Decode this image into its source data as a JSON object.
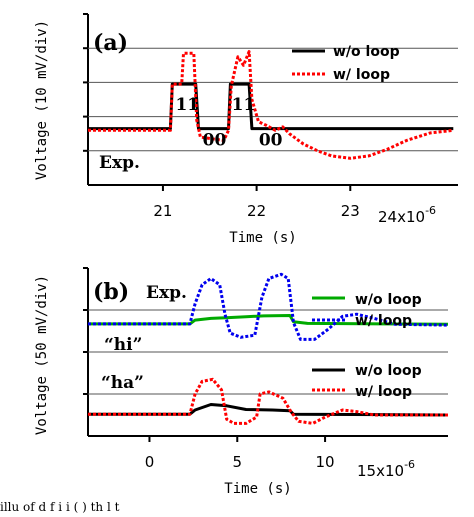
{
  "caption": "illu           of          d f   i   i    (   ) th  l t",
  "chart_data": [
    {
      "type": "line",
      "panel_label": "(a)",
      "corner_text": "Exp.",
      "xlabel": "Time (s)",
      "ylabel": "Voltage (10 mV/div)",
      "x_multiplier": "24x10",
      "x_multiplier_exp": "-6",
      "xlim": [
        20.2,
        24.15
      ],
      "ylim": [
        0,
        5
      ],
      "xticks": [
        21,
        22,
        23
      ],
      "xtick_labels": [
        "21",
        "22",
        "23"
      ],
      "y_gridlines": [
        1,
        2,
        3,
        4
      ],
      "legend_position": "top-right",
      "series": [
        {
          "name": "w/o loop",
          "color": "#000000",
          "style": "solid",
          "points": [
            [
              20.2,
              1.65
            ],
            [
              21.08,
              1.65
            ],
            [
              21.1,
              2.95
            ],
            [
              21.35,
              2.95
            ],
            [
              21.38,
              1.65
            ],
            [
              21.7,
              1.65
            ],
            [
              21.72,
              2.95
            ],
            [
              21.92,
              2.95
            ],
            [
              21.95,
              1.65
            ],
            [
              24.1,
              1.65
            ]
          ]
        },
        {
          "name": "w/ loop",
          "color": "#ff0000",
          "style": "dotted",
          "points": [
            [
              20.2,
              1.6
            ],
            [
              21.08,
              1.6
            ],
            [
              21.1,
              2.95
            ],
            [
              21.2,
              2.95
            ],
            [
              21.22,
              3.85
            ],
            [
              21.33,
              3.85
            ],
            [
              21.36,
              1.9
            ],
            [
              21.4,
              1.4
            ],
            [
              21.65,
              1.3
            ],
            [
              21.7,
              1.6
            ],
            [
              21.73,
              2.9
            ],
            [
              21.8,
              3.75
            ],
            [
              21.86,
              3.5
            ],
            [
              21.92,
              3.9
            ],
            [
              21.95,
              2.5
            ],
            [
              22.02,
              1.85
            ],
            [
              22.1,
              1.75
            ],
            [
              22.2,
              1.6
            ],
            [
              22.28,
              1.7
            ],
            [
              22.35,
              1.5
            ],
            [
              22.5,
              1.2
            ],
            [
              22.65,
              1.0
            ],
            [
              22.8,
              0.85
            ],
            [
              23.0,
              0.78
            ],
            [
              23.2,
              0.85
            ],
            [
              23.4,
              1.05
            ],
            [
              23.6,
              1.3
            ],
            [
              23.85,
              1.52
            ],
            [
              24.1,
              1.6
            ]
          ]
        }
      ],
      "annotations": [
        {
          "text": "11",
          "x": 21.26,
          "y": 2.2
        },
        {
          "text": "00",
          "x": 21.55,
          "y": 1.15
        },
        {
          "text": "11",
          "x": 21.86,
          "y": 2.2
        },
        {
          "text": "00",
          "x": 22.15,
          "y": 1.15
        }
      ]
    },
    {
      "type": "line",
      "panel_label": "(b)",
      "corner_text": "Exp.",
      "xlabel": "Time (s)",
      "ylabel": "Voltage (50 mV/div)",
      "x_multiplier": "15x10",
      "x_multiplier_exp": "-6",
      "xlim": [
        -3.5,
        17
      ],
      "ylim": [
        0,
        4
      ],
      "xticks": [
        0,
        5,
        10
      ],
      "xtick_labels": [
        "0",
        "5",
        "10"
      ],
      "y_gridlines": [
        1,
        2,
        3
      ],
      "legend_position": "top-right",
      "groups": [
        {
          "label": "“hi”",
          "series": [
            {
              "name": "w/o loop",
              "color": "#00aa00",
              "style": "solid",
              "points": [
                [
                  -3.5,
                  2.67
                ],
                [
                  2.3,
                  2.67
                ],
                [
                  2.6,
                  2.76
                ],
                [
                  3.5,
                  2.8
                ],
                [
                  4.5,
                  2.82
                ],
                [
                  5.5,
                  2.84
                ],
                [
                  6.5,
                  2.86
                ],
                [
                  8,
                  2.87
                ],
                [
                  8.2,
                  2.72
                ],
                [
                  9,
                  2.68
                ],
                [
                  17,
                  2.66
                ]
              ]
            },
            {
              "name": "w/ loop",
              "color": "#0000ee",
              "style": "dotted",
              "points": [
                [
                  -3.5,
                  2.67
                ],
                [
                  2.3,
                  2.67
                ],
                [
                  2.6,
                  3.15
                ],
                [
                  3,
                  3.6
                ],
                [
                  3.5,
                  3.75
                ],
                [
                  4.0,
                  3.6
                ],
                [
                  4.3,
                  2.9
                ],
                [
                  4.6,
                  2.45
                ],
                [
                  5.2,
                  2.35
                ],
                [
                  6.0,
                  2.4
                ],
                [
                  6.4,
                  3.3
                ],
                [
                  6.8,
                  3.75
                ],
                [
                  7.5,
                  3.85
                ],
                [
                  7.9,
                  3.75
                ],
                [
                  8.2,
                  2.7
                ],
                [
                  8.6,
                  2.3
                ],
                [
                  9.4,
                  2.3
                ],
                [
                  10.2,
                  2.55
                ],
                [
                  11.0,
                  2.85
                ],
                [
                  11.8,
                  2.9
                ],
                [
                  12.8,
                  2.8
                ],
                [
                  14,
                  2.66
                ],
                [
                  17,
                  2.64
                ]
              ]
            }
          ]
        },
        {
          "label": "“ha”",
          "series": [
            {
              "name": "w/o loop",
              "color": "#000000",
              "style": "solid",
              "points": [
                [
                  -3.5,
                  0.52
                ],
                [
                  2.3,
                  0.52
                ],
                [
                  2.6,
                  0.62
                ],
                [
                  3.5,
                  0.75
                ],
                [
                  4.4,
                  0.72
                ],
                [
                  5.5,
                  0.63
                ],
                [
                  7,
                  0.62
                ],
                [
                  8,
                  0.6
                ],
                [
                  8.2,
                  0.52
                ],
                [
                  17,
                  0.5
                ]
              ]
            },
            {
              "name": "w/ loop",
              "color": "#ff0000",
              "style": "dotted",
              "points": [
                [
                  -3.5,
                  0.52
                ],
                [
                  2.3,
                  0.52
                ],
                [
                  2.6,
                  1.0
                ],
                [
                  3,
                  1.3
                ],
                [
                  3.6,
                  1.35
                ],
                [
                  4.1,
                  1.1
                ],
                [
                  4.4,
                  0.4
                ],
                [
                  4.8,
                  0.3
                ],
                [
                  5.5,
                  0.3
                ],
                [
                  6.1,
                  0.45
                ],
                [
                  6.3,
                  1.0
                ],
                [
                  6.8,
                  1.05
                ],
                [
                  7.6,
                  0.9
                ],
                [
                  8.1,
                  0.55
                ],
                [
                  8.5,
                  0.35
                ],
                [
                  9.3,
                  0.3
                ],
                [
                  10,
                  0.45
                ],
                [
                  11,
                  0.62
                ],
                [
                  11.8,
                  0.58
                ],
                [
                  12.8,
                  0.5
                ],
                [
                  17,
                  0.5
                ]
              ]
            }
          ]
        }
      ]
    }
  ]
}
